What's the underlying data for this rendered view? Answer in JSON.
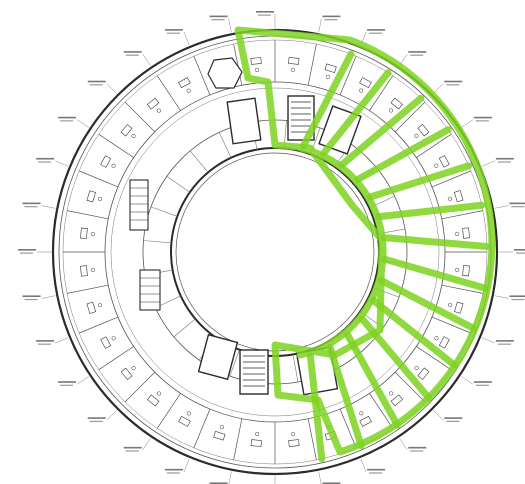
{
  "drawing": {
    "type": "circular-floor-plan",
    "background_color": "#ffffff",
    "line_color": "#2b2b2b",
    "faint_line_color": "#8a8a8a",
    "highlight_color": "#7ed321",
    "highlighted_zone": "east-half",
    "room_labels_legible": false
  }
}
